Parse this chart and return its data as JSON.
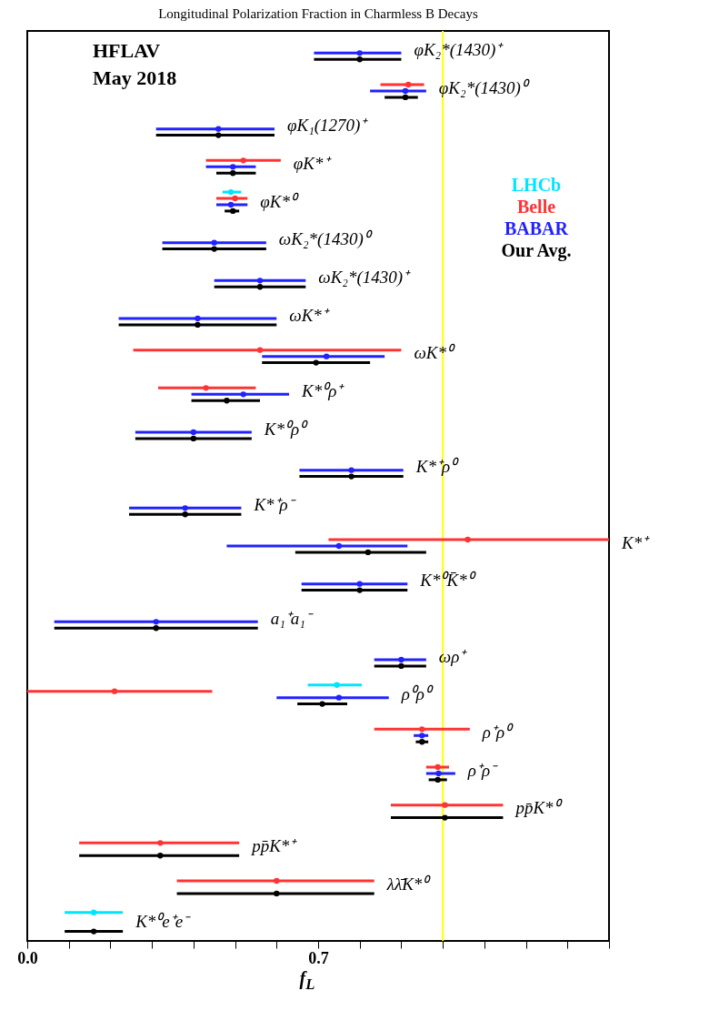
{
  "chart_data": {
    "type": "scatter",
    "title": "Longitudinal Polarization Fraction in Charmless B Decays",
    "xlabel": "f$_{L}$",
    "categories": [
      "φK₂*(1430)⁺",
      "φK₂*(1430)⁰",
      "φK₁(1270)⁺",
      "φK*⁺",
      "φK*⁰",
      "ωK₂*(1430)⁰",
      "ωK₂*(1430)⁺",
      "ωK*⁺",
      "ωK*⁰",
      "K*⁰ρ⁺",
      "K*⁰ρ⁰",
      "K*⁺ρ⁰",
      "K*⁺ρ⁻",
      "K*⁺",
      "K*⁰K̄*⁰",
      "a₁⁺a₁⁻",
      "ωρ⁺",
      "ρ⁰ρ⁰",
      "ρ⁺ρ⁰",
      "ρ⁺ρ⁻",
      "pp̄K*⁰",
      "pp̄K*⁺",
      "λλ̄K*⁰",
      "K*⁰e⁺e⁻"
    ],
    "series": [
      {
        "name": "LHCb",
        "color": "#00e5ff",
        "values": [
          null,
          null,
          null,
          null,
          0.49,
          null,
          null,
          null,
          null,
          null,
          null,
          null,
          null,
          null,
          null,
          null,
          null,
          0.745,
          null,
          null,
          null,
          null,
          null,
          0.16
        ],
        "errors": [
          null,
          null,
          null,
          null,
          [
            0.47,
            0.515
          ],
          null,
          null,
          null,
          null,
          null,
          null,
          null,
          null,
          null,
          null,
          null,
          null,
          [
            0.675,
            0.805
          ],
          null,
          null,
          null,
          null,
          null,
          [
            0.09,
            0.23
          ]
        ]
      },
      {
        "name": "Belle",
        "color": "#ff3333",
        "values": [
          null,
          0.917,
          null,
          0.52,
          0.5,
          null,
          null,
          null,
          0.56,
          0.43,
          null,
          null,
          null,
          1.06,
          null,
          null,
          null,
          0.21,
          0.95,
          0.988,
          1.005,
          0.32,
          0.6,
          null
        ],
        "errors": [
          null,
          [
            0.85,
            0.955
          ],
          null,
          [
            0.43,
            0.61
          ],
          [
            0.455,
            0.53
          ],
          null,
          null,
          null,
          [
            0.255,
            0.9
          ],
          [
            0.315,
            0.55
          ],
          null,
          null,
          null,
          [
            0.725,
            1.4
          ],
          null,
          null,
          null,
          [
            0.0,
            0.445
          ],
          [
            0.835,
            1.065
          ],
          [
            0.96,
            1.015
          ],
          [
            0.875,
            1.145
          ],
          [
            0.125,
            0.51
          ],
          [
            0.36,
            0.835
          ],
          null
        ]
      },
      {
        "name": "BABAR",
        "color": "#2222ff",
        "values": [
          0.8,
          0.91,
          0.46,
          0.495,
          0.49,
          0.45,
          0.56,
          0.41,
          0.72,
          0.52,
          0.4,
          0.78,
          0.38,
          0.75,
          0.8,
          0.31,
          0.9,
          0.75,
          0.95,
          0.99,
          null,
          null,
          null,
          null
        ],
        "errors": [
          [
            0.69,
            0.9
          ],
          [
            0.825,
            0.96
          ],
          [
            0.31,
            0.595
          ],
          [
            0.43,
            0.55
          ],
          [
            0.455,
            0.53
          ],
          [
            0.325,
            0.575
          ],
          [
            0.45,
            0.67
          ],
          [
            0.22,
            0.6
          ],
          [
            0.565,
            0.86
          ],
          [
            0.395,
            0.63
          ],
          [
            0.26,
            0.54
          ],
          [
            0.655,
            0.905
          ],
          [
            0.245,
            0.515
          ],
          [
            0.48,
            0.915
          ],
          [
            0.66,
            0.915
          ],
          [
            0.065,
            0.555
          ],
          [
            0.835,
            0.96
          ],
          [
            0.6,
            0.87
          ],
          [
            0.93,
            0.965
          ],
          [
            0.96,
            1.03
          ],
          null,
          null,
          null,
          null
        ]
      },
      {
        "name": "Our Avg.",
        "color": "#000000",
        "values": [
          0.8,
          0.91,
          0.46,
          0.495,
          0.495,
          0.45,
          0.56,
          0.41,
          0.695,
          0.48,
          0.4,
          0.78,
          0.38,
          0.82,
          0.8,
          0.31,
          0.9,
          0.71,
          0.95,
          0.988,
          1.005,
          0.32,
          0.6,
          0.16
        ],
        "errors": [
          [
            0.69,
            0.9
          ],
          [
            0.86,
            0.94
          ],
          [
            0.31,
            0.595
          ],
          [
            0.455,
            0.55
          ],
          [
            0.475,
            0.51
          ],
          [
            0.325,
            0.575
          ],
          [
            0.45,
            0.67
          ],
          [
            0.22,
            0.6
          ],
          [
            0.565,
            0.825
          ],
          [
            0.395,
            0.56
          ],
          [
            0.26,
            0.54
          ],
          [
            0.655,
            0.905
          ],
          [
            0.245,
            0.515
          ],
          [
            0.645,
            0.96
          ],
          [
            0.66,
            0.915
          ],
          [
            0.065,
            0.555
          ],
          [
            0.835,
            0.96
          ],
          [
            0.65,
            0.77
          ],
          [
            0.935,
            0.965
          ],
          [
            0.966,
            1.01
          ],
          [
            0.875,
            1.145
          ],
          [
            0.125,
            0.51
          ],
          [
            0.36,
            0.835
          ],
          [
            0.09,
            0.23
          ]
        ]
      }
    ],
    "xlim": [
      0.0,
      1.4
    ],
    "xticks": [
      {
        "value": 0.0,
        "label": "0.0"
      },
      {
        "value": 0.1,
        "label": null
      },
      {
        "value": 0.2,
        "label": null
      },
      {
        "value": 0.3,
        "label": null
      },
      {
        "value": 0.4,
        "label": null
      },
      {
        "value": 0.5,
        "label": null
      },
      {
        "value": 0.6,
        "label": null
      },
      {
        "value": 0.7,
        "label": "0.7"
      },
      {
        "value": 0.8,
        "label": null
      },
      {
        "value": 0.9,
        "label": null
      },
      {
        "value": 1.0,
        "label": null
      },
      {
        "value": 1.1,
        "label": null
      },
      {
        "value": 1.2,
        "label": null
      },
      {
        "value": 1.3,
        "label": null
      },
      {
        "value": 1.4,
        "label": null
      }
    ],
    "ref_lines": [
      {
        "axis": "x",
        "value": 1.0,
        "color": "#ffff00"
      }
    ],
    "annotations": [
      "HFLAV",
      "May 2018"
    ],
    "orientation": "horizontal",
    "tick_labels": "x",
    "grid": false,
    "legend": "top right",
    "marker": "circle"
  }
}
